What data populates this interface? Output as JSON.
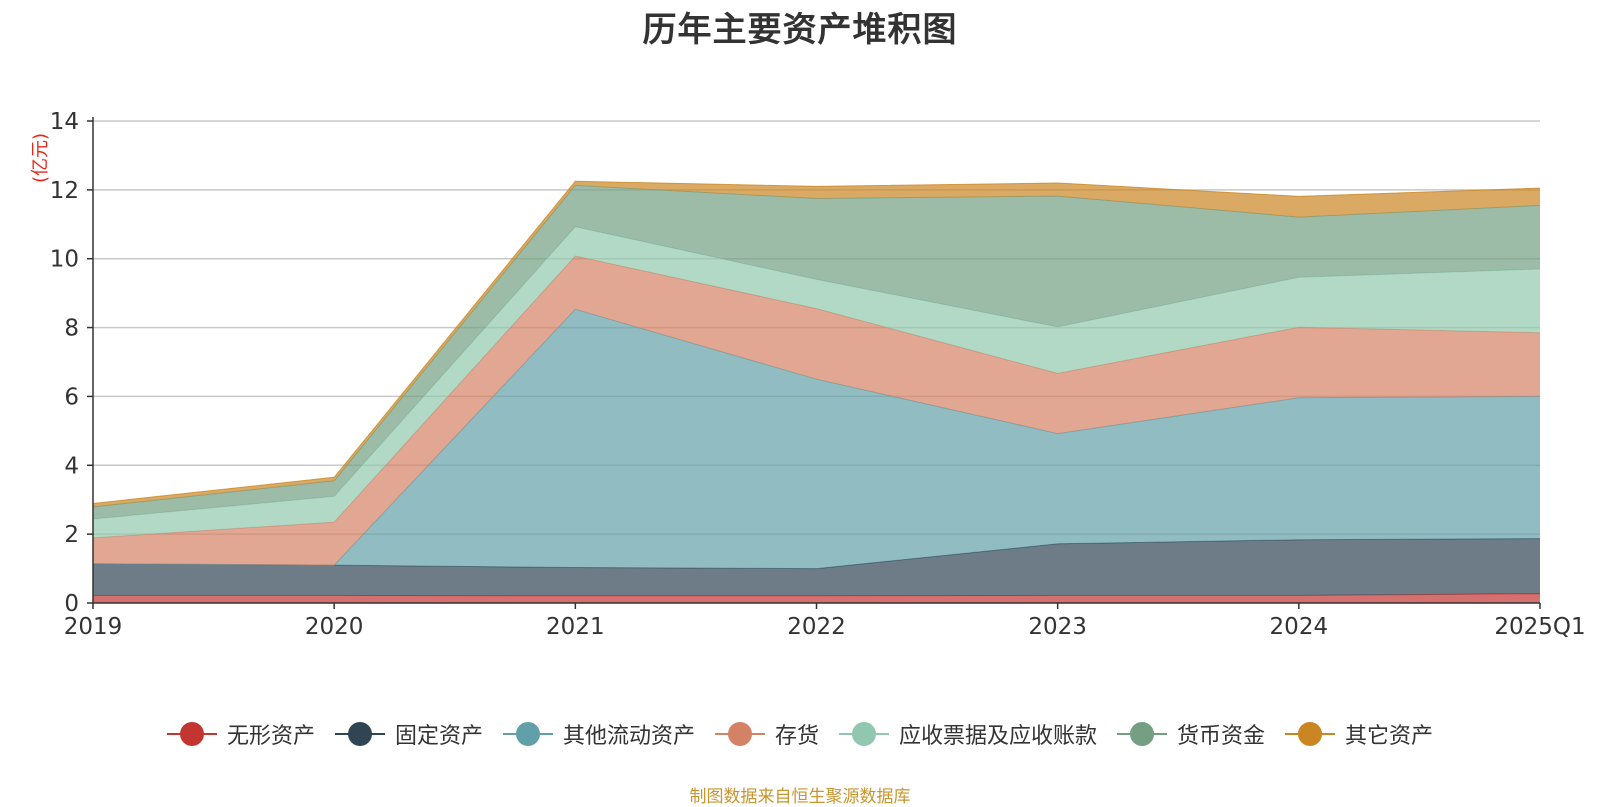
{
  "chart_data": {
    "type": "area",
    "stacked": true,
    "title": "历年主要资产堆积图",
    "unit_label": "(亿元)",
    "categories": [
      "2019",
      "2020",
      "2021",
      "2022",
      "2023",
      "2024",
      "2025Q1"
    ],
    "ylim": [
      0,
      14
    ],
    "yticks": [
      0,
      2,
      4,
      6,
      8,
      10,
      12,
      14
    ],
    "grid": true,
    "legend_position": "bottom",
    "series": [
      {
        "name": "无形资产",
        "color": "#c23531",
        "values": [
          0.22,
          0.22,
          0.21,
          0.21,
          0.22,
          0.22,
          0.27
        ]
      },
      {
        "name": "固定资产",
        "color": "#2f4554",
        "values": [
          0.92,
          0.88,
          0.82,
          0.79,
          1.5,
          1.62,
          1.6
        ]
      },
      {
        "name": "其他流动资产",
        "color": "#61a0a8",
        "values": [
          0.0,
          0.0,
          7.5,
          5.5,
          3.2,
          4.12,
          4.13
        ]
      },
      {
        "name": "存货",
        "color": "#d48265",
        "values": [
          0.75,
          1.25,
          1.55,
          2.05,
          1.75,
          2.05,
          1.85
        ]
      },
      {
        "name": "应收票据及应收账款",
        "color": "#91c7ae",
        "values": [
          0.55,
          0.75,
          0.85,
          0.85,
          1.35,
          1.45,
          1.85
        ]
      },
      {
        "name": "货币资金",
        "color": "#749f83",
        "values": [
          0.35,
          0.45,
          1.2,
          2.35,
          3.8,
          1.75,
          1.85
        ]
      },
      {
        "name": "其它资产",
        "color": "#ca8622",
        "values": [
          0.1,
          0.1,
          0.12,
          0.35,
          0.38,
          0.6,
          0.5
        ]
      }
    ]
  },
  "source_text": "制图数据来自恒生聚源数据库"
}
